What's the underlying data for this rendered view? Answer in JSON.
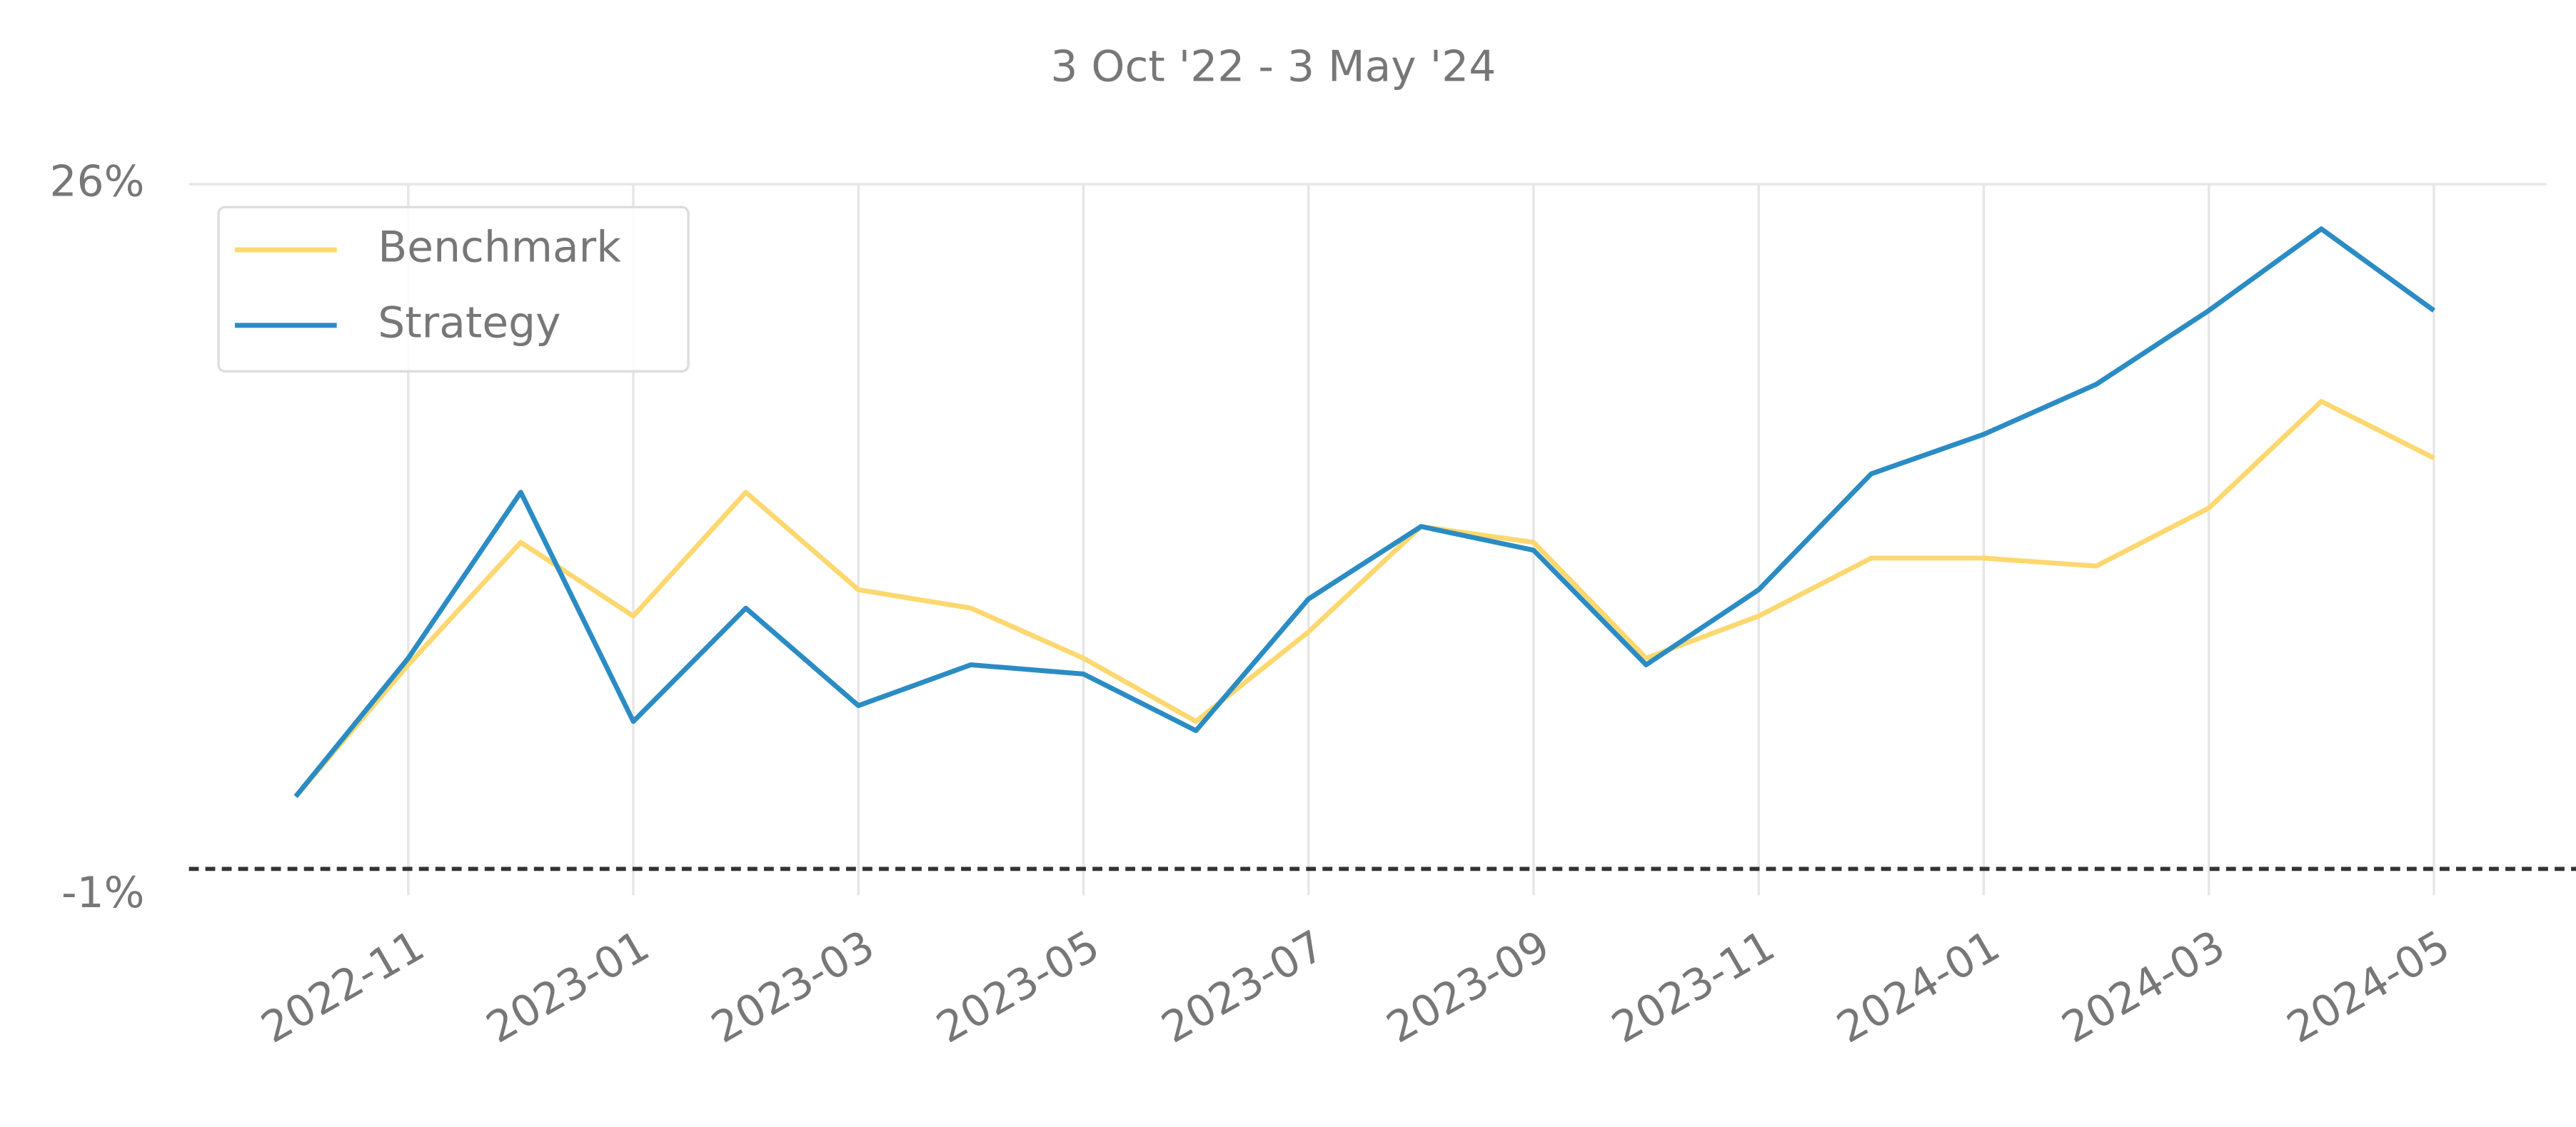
{
  "chart_data": {
    "type": "line",
    "title": "3 Oct '22 -  3 May '24",
    "x": [
      "2022-10",
      "2022-11",
      "2022-12",
      "2023-01",
      "2023-02",
      "2023-03",
      "2023-04",
      "2023-05",
      "2023-06",
      "2023-07",
      "2023-08",
      "2023-09",
      "2023-10",
      "2023-11",
      "2023-12",
      "2024-01",
      "2024-02",
      "2024-03",
      "2024-04",
      "2024-05"
    ],
    "xticks": [
      "2022-11",
      "2023-01",
      "2023-03",
      "2023-05",
      "2023-07",
      "2023-09",
      "2023-11",
      "2024-01",
      "2024-03",
      "2024-05"
    ],
    "series": [
      {
        "name": "Benchmark",
        "color": "#fdd870",
        "values": [
          2.75,
          7.75,
          12.4,
          9.6,
          14.3,
          10.6,
          9.9,
          8,
          5.6,
          9,
          13,
          12.4,
          8,
          9.6,
          11.8,
          11.8,
          11.5,
          13.7,
          17.75,
          15.6
        ]
      },
      {
        "name": "Strategy",
        "color": "#2b8cc4",
        "values": [
          2.75,
          8,
          14.3,
          5.6,
          9.9,
          6.2,
          7.75,
          7.4,
          5.25,
          10.25,
          13,
          12.1,
          7.75,
          10.6,
          15,
          16.5,
          18.4,
          21.2,
          24.3,
          21.2
        ]
      }
    ],
    "ylim": [
      -1,
      26
    ],
    "yticks": [
      {
        "value": 26,
        "label": "26%"
      },
      {
        "value": -1,
        "label": "-1%"
      }
    ],
    "hline": 0,
    "grid": true,
    "legend": "upper left"
  }
}
